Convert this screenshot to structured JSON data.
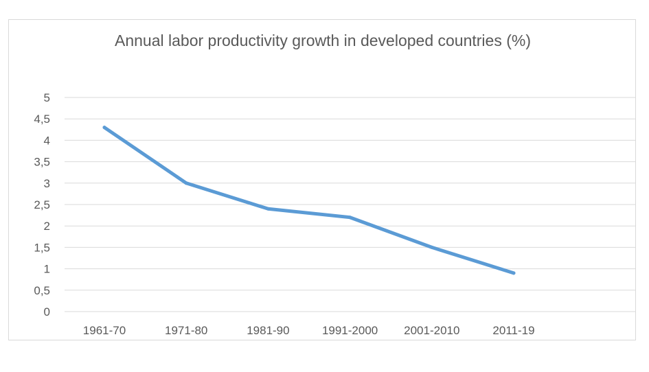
{
  "chart_data": {
    "type": "line",
    "title": "Annual labor productivity growth in developed countries (%)",
    "categories": [
      "1961-70",
      "1971-80",
      "1981-90",
      "1991-2000",
      "2001-2010",
      "2011-19"
    ],
    "series": [
      {
        "name": "Annual labor productivity growth",
        "values": [
          4.3,
          3.0,
          2.4,
          2.2,
          1.5,
          0.9
        ]
      }
    ],
    "yticks": [
      0,
      0.5,
      1,
      1.5,
      2,
      2.5,
      3,
      3.5,
      4,
      4.5,
      5
    ],
    "ytick_labels": [
      "0",
      "0,5",
      "1",
      "1,5",
      "2",
      "2,5",
      "3",
      "3,5",
      "4",
      "4,5",
      "5"
    ],
    "ylim": [
      0,
      5
    ],
    "xlabel": "",
    "ylabel": "",
    "grid": true,
    "legend": "none",
    "colors": {
      "line": "#5b9bd5",
      "grid": "#d9d9d9",
      "text": "#595959"
    }
  }
}
